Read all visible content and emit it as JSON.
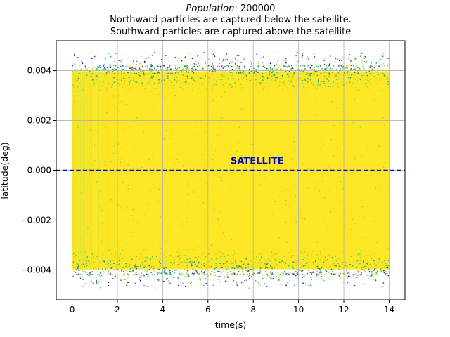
{
  "chart_data": {
    "type": "scatter",
    "title_prefix": "Population",
    "title_value": ": 200000",
    "subtitle_lines": [
      "Northward particles are captured below the satellite.",
      "Southward particles are captured above the satellite"
    ],
    "xlabel": "time(s)",
    "ylabel": "latitude(deg)",
    "xlim": [
      -0.7,
      14.7
    ],
    "ylim": [
      -0.0052,
      0.0052
    ],
    "xticks": [
      0,
      2,
      4,
      6,
      8,
      10,
      12,
      14
    ],
    "xtick_labels": [
      "0",
      "2",
      "4",
      "6",
      "8",
      "10",
      "12",
      "14"
    ],
    "yticks": [
      -0.004,
      -0.002,
      0.0,
      0.002,
      0.004
    ],
    "ytick_labels": [
      "−0.004",
      "−0.002",
      "0.000",
      "0.002",
      "0.004"
    ],
    "grid": true,
    "particle_band": {
      "x_range": [
        0,
        14
      ],
      "y_range": [
        -0.0042,
        0.0042
      ]
    },
    "reference_line": {
      "y": 0.0,
      "style": "dashed",
      "color": "#0000cd"
    },
    "annotation": {
      "text": "SATELLITE",
      "x": 7.0,
      "y": 0.00025
    },
    "colors": {
      "fill": "#fde725",
      "palette": [
        "#fde725",
        "#b5de2b",
        "#6ece58",
        "#35b779",
        "#1f9e89",
        "#26828e",
        "#31688e",
        "#3e4989",
        "#482878",
        "#440154"
      ]
    }
  }
}
